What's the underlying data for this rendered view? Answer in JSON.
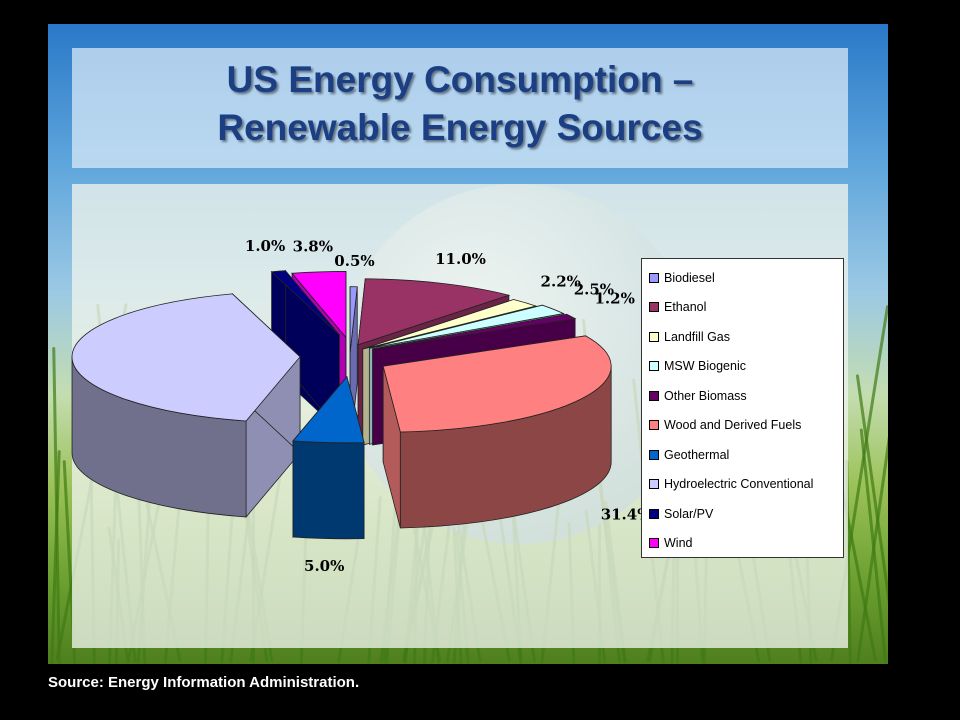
{
  "title_line1": "US Energy Consumption –",
  "title_line2": "Renewable Energy Sources",
  "source": "Source: Energy Information Administration.",
  "chart_data": {
    "type": "pie",
    "style": "3d-exploded",
    "legend_position": "right",
    "slices": [
      {
        "name": "Biodiesel",
        "value": 0.5,
        "label": "0.5%",
        "color": "#9999ff"
      },
      {
        "name": "Ethanol",
        "value": 11.0,
        "label": "11.0%",
        "color": "#993366"
      },
      {
        "name": "Landfill Gas",
        "value": 2.2,
        "label": "2.2%",
        "color": "#ffffcc"
      },
      {
        "name": "MSW Biogenic",
        "value": 2.5,
        "label": "2.5%",
        "color": "#ccffff"
      },
      {
        "name": "Other Biomass",
        "value": 1.2,
        "label": "1.2%",
        "color": "#660066"
      },
      {
        "name": "Wood and Derived Fuels",
        "value": 31.4,
        "label": "31.4%",
        "color": "#ff8080"
      },
      {
        "name": "Geothermal",
        "value": 5.0,
        "label": "5.0%",
        "color": "#0066cc"
      },
      {
        "name": "Hydroelectric Conventional",
        "value": 41.4,
        "label": "41.4%",
        "color": "#ccccff"
      },
      {
        "name": "Solar/PV",
        "value": 1.0,
        "label": "1.0%",
        "color": "#000080"
      },
      {
        "name": "Wind",
        "value": 3.8,
        "label": "3.8%",
        "color": "#ff00ff"
      }
    ]
  }
}
